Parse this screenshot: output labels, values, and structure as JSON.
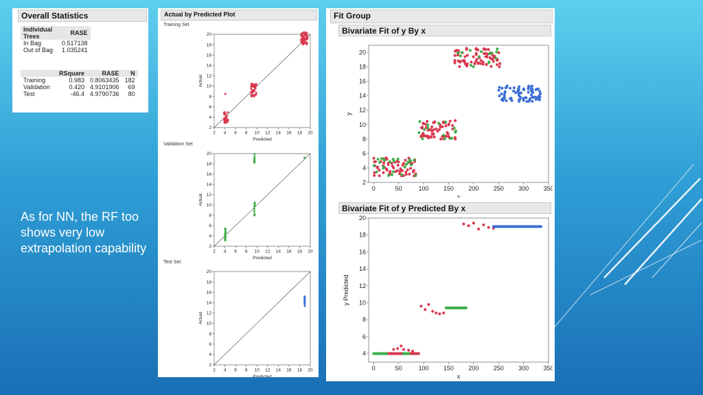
{
  "caption": "As for NN, the RF too shows very low extrapolation capability",
  "overall_statistics": {
    "title": "Overall Statistics",
    "table1": {
      "headers": [
        "Individual Trees",
        "RASE"
      ],
      "rows": [
        [
          "In Bag",
          "0.517138"
        ],
        [
          "Out of Bag",
          "1.035241"
        ]
      ]
    },
    "table2": {
      "headers": [
        "",
        "RSquare",
        "RASE",
        "N"
      ],
      "rows": [
        [
          "Training",
          "0.983",
          "0.8063435",
          "182"
        ],
        [
          "Validation",
          "0.420",
          "4.9101906",
          "69"
        ],
        [
          "Test",
          "-46.4",
          "4.9790736",
          "80"
        ]
      ]
    }
  },
  "actual_by_predicted": {
    "title": "Actual by Predicted Plot",
    "xlabel": "Predicted",
    "ylabel": "Actual",
    "ticks": [
      2,
      4,
      6,
      8,
      10,
      12,
      14,
      16,
      18,
      20
    ]
  },
  "fit_group": {
    "title": "Fit Group",
    "plot1_title": "Bivariate Fit of y By x",
    "plot2_title": "Bivariate Fit of y Predicted By x"
  },
  "colors": {
    "red": "#d9384f",
    "green": "#3fae49",
    "blue": "#3e6fd8"
  },
  "chart_data": [
    {
      "type": "scatter",
      "title": "Training Set",
      "xlabel": "Predicted",
      "ylabel": "Actual",
      "xlim": [
        2,
        20
      ],
      "ylim": [
        2,
        20
      ],
      "x_ticks": [
        2,
        4,
        6,
        8,
        10,
        12,
        14,
        16,
        18,
        20
      ],
      "y_ticks": [
        2,
        4,
        6,
        8,
        10,
        12,
        14,
        16,
        18,
        20
      ],
      "diagonal": true,
      "series": [
        {
          "color": "red",
          "clusters": [
            {
              "x": [
                3.8,
                4.6
              ],
              "y": [
                2.8,
                5.0
              ],
              "n": 35
            },
            {
              "x": [
                8.9,
                10.0
              ],
              "y": [
                8.0,
                10.5
              ],
              "n": 45
            },
            {
              "x": [
                18.2,
                19.5
              ],
              "y": [
                18.0,
                20.4
              ],
              "n": 60
            }
          ]
        },
        {
          "color": "red",
          "points": [
            [
              4.1,
              8.5
            ]
          ]
        }
      ]
    },
    {
      "type": "scatter",
      "title": "Validation Set",
      "xlabel": "Predicted",
      "ylabel": "Actual",
      "xlim": [
        2,
        20
      ],
      "ylim": [
        2,
        20
      ],
      "x_ticks": [
        2,
        4,
        6,
        8,
        10,
        12,
        14,
        16,
        18,
        20
      ],
      "y_ticks": [
        2,
        4,
        6,
        8,
        10,
        12,
        14,
        16,
        18,
        20
      ],
      "diagonal": true,
      "series": [
        {
          "color": "green",
          "clusters": [
            {
              "x": [
                4.0,
                4.15
              ],
              "y": [
                3.0,
                5.5
              ],
              "n": 22
            },
            {
              "x": [
                9.5,
                9.6
              ],
              "y": [
                8.0,
                10.5
              ],
              "n": 12
            },
            {
              "x": [
                9.5,
                9.6
              ],
              "y": [
                18.0,
                20.0
              ],
              "n": 14
            }
          ]
        },
        {
          "color": "green",
          "points": [
            [
              18.9,
              19.2
            ]
          ]
        }
      ]
    },
    {
      "type": "scatter",
      "title": "Test Set",
      "xlabel": "Predicted",
      "ylabel": "Actual",
      "xlim": [
        2,
        20
      ],
      "ylim": [
        2,
        20
      ],
      "x_ticks": [
        2,
        4,
        6,
        8,
        10,
        12,
        14,
        16,
        18,
        20
      ],
      "y_ticks": [
        2,
        4,
        6,
        8,
        10,
        12,
        14,
        16,
        18,
        20
      ],
      "diagonal": true,
      "series": [
        {
          "color": "blue",
          "clusters": [
            {
              "x": [
                18.9,
                19.0
              ],
              "y": [
                13.2,
                15.5
              ],
              "n": 18
            }
          ]
        }
      ]
    },
    {
      "type": "scatter",
      "title": "Bivariate Fit of y By x",
      "xlabel": "x",
      "ylabel": "y",
      "xlim": [
        -10,
        350
      ],
      "ylim": [
        2,
        21
      ],
      "x_ticks": [
        0,
        50,
        100,
        150,
        200,
        250,
        300,
        350
      ],
      "y_ticks": [
        2,
        4,
        6,
        8,
        10,
        12,
        14,
        16,
        18,
        20
      ],
      "series": [
        {
          "color": "red",
          "clusters": [
            {
              "x": [
                0,
                85
              ],
              "y": [
                2.9,
                5.4
              ],
              "n": 60
            },
            {
              "x": [
                90,
                165
              ],
              "y": [
                8.0,
                10.6
              ],
              "n": 60
            },
            {
              "x": [
                160,
                255
              ],
              "y": [
                18.0,
                20.6
              ],
              "n": 70
            }
          ]
        },
        {
          "color": "green",
          "clusters": [
            {
              "x": [
                0,
                85
              ],
              "y": [
                2.9,
                5.4
              ],
              "n": 25
            },
            {
              "x": [
                90,
                165
              ],
              "y": [
                8.0,
                10.6
              ],
              "n": 15
            },
            {
              "x": [
                160,
                255
              ],
              "y": [
                18.0,
                20.6
              ],
              "n": 15
            }
          ]
        },
        {
          "color": "blue",
          "clusters": [
            {
              "x": [
                250,
                335
              ],
              "y": [
                13.2,
                15.5
              ],
              "n": 80
            }
          ]
        }
      ]
    },
    {
      "type": "scatter",
      "title": "Bivariate Fit of y Predicted By x",
      "xlabel": "x",
      "ylabel": "y Predicted",
      "xlim": [
        -10,
        350
      ],
      "ylim": [
        3,
        20
      ],
      "x_ticks": [
        0,
        50,
        100,
        150,
        200,
        250,
        300,
        350
      ],
      "y_ticks": [
        4,
        6,
        8,
        10,
        12,
        14,
        16,
        18,
        20
      ],
      "series": [
        {
          "color": "green",
          "segments": [
            {
              "x": [
                0,
                40
              ],
              "y": 4.0
            },
            {
              "x": [
                55,
                90
              ],
              "y": 4.0
            },
            {
              "x": [
                145,
                185
              ],
              "y": 9.4
            }
          ]
        },
        {
          "color": "red",
          "segments": [
            {
              "x": [
                30,
                55
              ],
              "y": 4.0
            },
            {
              "x": [
                75,
                90
              ],
              "y": 4.0
            }
          ]
        },
        {
          "color": "red",
          "points": [
            [
              40,
              4.5
            ],
            [
              48,
              4.6
            ],
            [
              55,
              4.9
            ],
            [
              60,
              4.5
            ],
            [
              70,
              4.4
            ],
            [
              78,
              4.3
            ],
            [
              95,
              9.6
            ],
            [
              103,
              9.2
            ],
            [
              110,
              9.8
            ],
            [
              118,
              9.0
            ],
            [
              125,
              8.8
            ],
            [
              132,
              8.7
            ],
            [
              140,
              8.8
            ],
            [
              180,
              19.3
            ],
            [
              190,
              19.1
            ],
            [
              200,
              19.4
            ],
            [
              210,
              18.7
            ],
            [
              220,
              19.2
            ],
            [
              230,
              18.9
            ],
            [
              240,
              18.8
            ]
          ]
        },
        {
          "color": "blue",
          "segments": [
            {
              "x": [
                240,
                335
              ],
              "y": 19.0
            }
          ]
        }
      ]
    }
  ]
}
